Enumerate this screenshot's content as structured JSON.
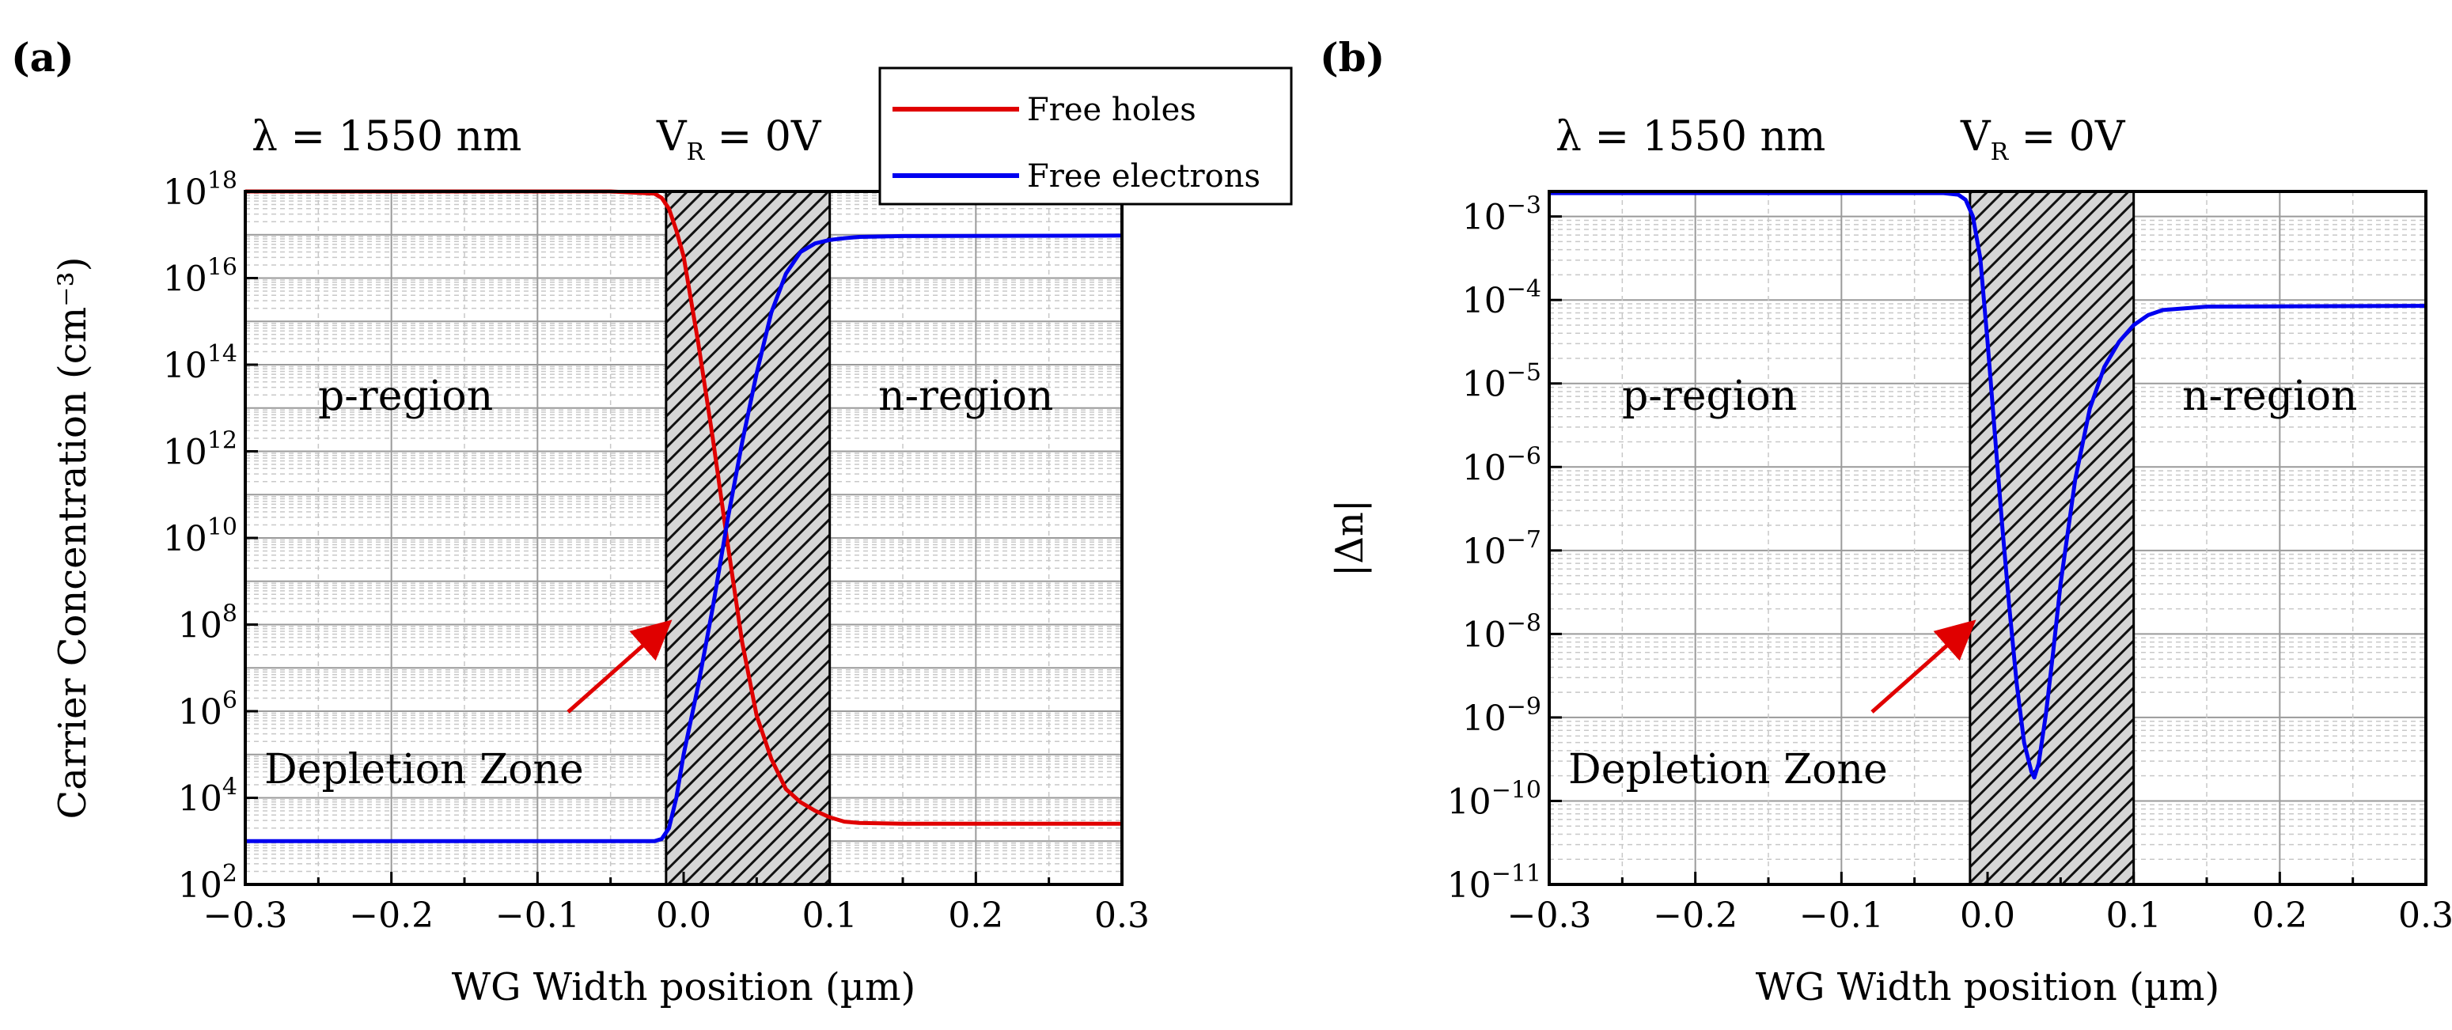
{
  "colors": {
    "holes": "#e00000",
    "electrons": "#0000f0",
    "arrow": "#e00000",
    "depletion_fill": "#bdbdbd"
  },
  "chart_data": [
    {
      "panel": "(a)",
      "type": "line",
      "yscale": "log",
      "xlabel": "WG Width position (µm)",
      "ylabel": "Carrier Concentration (cm⁻³)",
      "xlim": [
        -0.3,
        0.3
      ],
      "ylim_log10": [
        2,
        18
      ],
      "x_ticks": [
        "−0.3",
        "−0.2",
        "−0.1",
        "0.0",
        "0.1",
        "0.2",
        "0.3"
      ],
      "y_ticks_exponents": [
        "2",
        "4",
        "6",
        "8",
        "10",
        "12",
        "14",
        "16",
        "18"
      ],
      "y_tick_base": "10",
      "grid": true,
      "annotations": {
        "wavelength": "λ = 1550 nm",
        "voltage_base": "V",
        "voltage_sub": "R",
        "voltage_value": " = 0V",
        "p_region": "p-region",
        "n_region": "n-region",
        "depletion": "Depletion Zone"
      },
      "depletion_zone": [
        -0.012,
        0.1
      ],
      "legend": {
        "placement": "top-right",
        "entries": [
          "Free holes",
          "Free electrons"
        ]
      },
      "series": [
        {
          "name": "Free holes",
          "color_key": "holes",
          "x": [
            -0.3,
            -0.05,
            -0.02,
            -0.015,
            -0.01,
            -0.005,
            0.0,
            0.01,
            0.02,
            0.03,
            0.04,
            0.05,
            0.06,
            0.07,
            0.08,
            0.09,
            0.1,
            0.11,
            0.12,
            0.15,
            0.3
          ],
          "log10": [
            18.0,
            18.0,
            17.95,
            17.85,
            17.6,
            17.1,
            16.5,
            14.5,
            12.3,
            9.9,
            7.6,
            5.9,
            4.9,
            4.2,
            3.9,
            3.7,
            3.55,
            3.45,
            3.42,
            3.4,
            3.4
          ]
        },
        {
          "name": "Free electrons",
          "color_key": "electrons",
          "x": [
            -0.3,
            -0.02,
            -0.015,
            -0.01,
            -0.005,
            0.0,
            0.01,
            0.02,
            0.03,
            0.04,
            0.05,
            0.06,
            0.07,
            0.08,
            0.09,
            0.1,
            0.11,
            0.12,
            0.15,
            0.3
          ],
          "log10": [
            3.0,
            3.0,
            3.05,
            3.3,
            4.0,
            5.0,
            6.6,
            8.4,
            10.4,
            12.2,
            13.8,
            15.2,
            16.1,
            16.6,
            16.8,
            16.88,
            16.92,
            16.95,
            16.97,
            16.98
          ]
        }
      ]
    },
    {
      "panel": "(b)",
      "type": "line",
      "yscale": "log",
      "xlabel": "WG Width position (µm)",
      "ylabel": "|Δn|",
      "xlim": [
        -0.3,
        0.3
      ],
      "ylim_log10": [
        -11,
        -2.7
      ],
      "x_ticks": [
        "−0.3",
        "−0.2",
        "−0.1",
        "0.0",
        "0.1",
        "0.2",
        "0.3"
      ],
      "y_ticks_exponents": [
        "−11",
        "−10",
        "−9",
        "−8",
        "−7",
        "−6",
        "−5",
        "−4",
        "−3"
      ],
      "y_tick_base": "10",
      "grid": true,
      "annotations": {
        "wavelength": "λ = 1550 nm",
        "voltage_base": "V",
        "voltage_sub": "R",
        "voltage_value": " = 0V",
        "p_region": "p-region",
        "n_region": "n-region",
        "depletion": "Depletion Zone"
      },
      "depletion_zone": [
        -0.012,
        0.1
      ],
      "series": [
        {
          "name": "|Δn|",
          "color_key": "electrons",
          "x": [
            -0.3,
            -0.03,
            -0.02,
            -0.015,
            -0.01,
            -0.005,
            0.0,
            0.005,
            0.01,
            0.015,
            0.02,
            0.025,
            0.03,
            0.032,
            0.035,
            0.04,
            0.045,
            0.05,
            0.06,
            0.07,
            0.08,
            0.09,
            0.1,
            0.11,
            0.12,
            0.15,
            0.3
          ],
          "log10": [
            -2.72,
            -2.72,
            -2.74,
            -2.8,
            -3.0,
            -3.5,
            -4.5,
            -5.6,
            -6.7,
            -7.7,
            -8.6,
            -9.3,
            -9.65,
            -9.72,
            -9.55,
            -8.95,
            -8.2,
            -7.4,
            -6.15,
            -5.3,
            -4.8,
            -4.5,
            -4.3,
            -4.18,
            -4.12,
            -4.08,
            -4.07
          ]
        }
      ]
    }
  ]
}
